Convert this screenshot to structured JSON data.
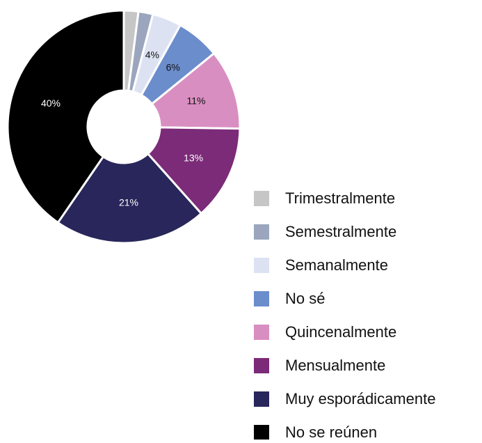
{
  "chart_data": {
    "type": "pie",
    "donut": true,
    "categories": [
      "Trimestralmente",
      "Semestralmente",
      "Semanalmente",
      "No sé",
      "Quincenalmente",
      "Mensualmente",
      "Muy esporádicamente",
      "No se reúnen"
    ],
    "values": [
      2,
      2,
      4,
      6,
      11,
      13,
      21,
      40
    ],
    "value_labels": [
      null,
      null,
      "4%",
      "6%",
      "11%",
      "13%",
      "21%",
      "40%"
    ],
    "colors": [
      "#c6c6c6",
      "#9ba6be",
      "#dde2f3",
      "#6b8dcc",
      "#d98ec1",
      "#7b2b78",
      "#28265a",
      "#000000"
    ],
    "legend": "right"
  }
}
